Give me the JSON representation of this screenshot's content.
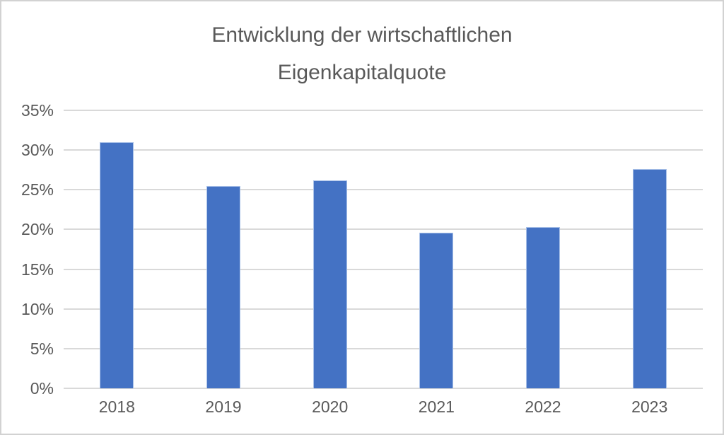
{
  "chart_data": {
    "type": "bar",
    "title": "Entwicklung der wirtschaftlichen Eigenkapitalquote",
    "categories": [
      "2018",
      "2019",
      "2020",
      "2021",
      "2022",
      "2023"
    ],
    "values": [
      31.0,
      25.5,
      26.2,
      19.6,
      20.3,
      27.6
    ],
    "unit": "%",
    "yticks": [
      "35%",
      "30%",
      "25%",
      "20%",
      "15%",
      "10%",
      "5%",
      "0%"
    ],
    "ylim": [
      0,
      35
    ],
    "xlabel": "",
    "ylabel": "",
    "grid": "horizontal",
    "legend_position": "none",
    "colors": {
      "bar": "#4472C4",
      "bar_edge": "#A9C1E8",
      "gridline": "#D9D9D9",
      "text": "#595959",
      "background": "#FFFFFF",
      "frame_border": "#D2D2D2"
    }
  }
}
